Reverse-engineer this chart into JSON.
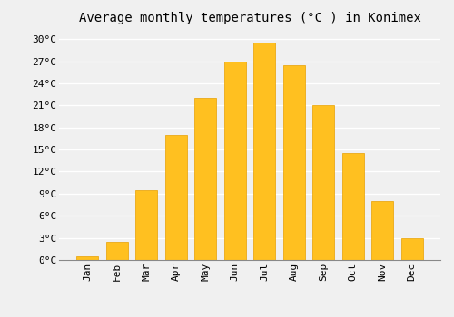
{
  "title": "Average monthly temperatures (°C ) in Konimex",
  "months": [
    "Jan",
    "Feb",
    "Mar",
    "Apr",
    "May",
    "Jun",
    "Jul",
    "Aug",
    "Sep",
    "Oct",
    "Nov",
    "Dec"
  ],
  "values": [
    0.5,
    2.5,
    9.5,
    17.0,
    22.0,
    27.0,
    29.5,
    26.5,
    21.0,
    14.5,
    8.0,
    3.0
  ],
  "bar_color": "#FFC020",
  "bar_edge_color": "#E8A000",
  "background_color": "#F0F0F0",
  "grid_color": "#FFFFFF",
  "ylim": [
    0,
    31
  ],
  "yticks": [
    0,
    3,
    6,
    9,
    12,
    15,
    18,
    21,
    24,
    27,
    30
  ],
  "ytick_labels": [
    "0°C",
    "3°C",
    "6°C",
    "9°C",
    "12°C",
    "15°C",
    "18°C",
    "21°C",
    "24°C",
    "27°C",
    "30°C"
  ],
  "title_fontsize": 10,
  "tick_fontsize": 8,
  "font_family": "monospace"
}
